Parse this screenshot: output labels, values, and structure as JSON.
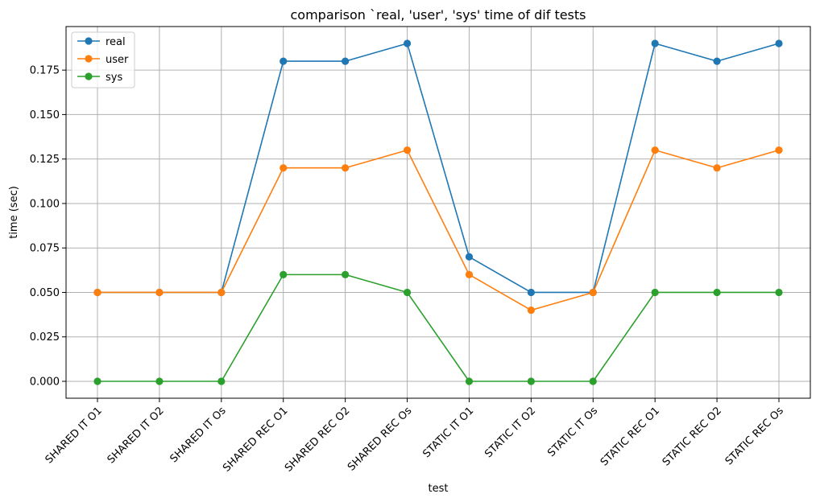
{
  "chart_data": {
    "type": "line",
    "title": "comparison `real, 'user', 'sys' time of dif tests",
    "xlabel": "test",
    "ylabel": "time (sec)",
    "categories": [
      "SHARED IT O1",
      "SHARED IT O2",
      "SHARED IT Os",
      "SHARED REC O1",
      "SHARED REC O2",
      "SHARED REC Os",
      "STATIC IT O1",
      "STATIC IT O2",
      "STATIC IT Os",
      "STATIC REC O1",
      "STATIC REC O2",
      "STATIC REC Os"
    ],
    "series": [
      {
        "name": "real",
        "color": "#1f77b4",
        "values": [
          0.05,
          0.05,
          0.05,
          0.18,
          0.18,
          0.19,
          0.07,
          0.05,
          0.05,
          0.19,
          0.18,
          0.19
        ]
      },
      {
        "name": "user",
        "color": "#ff7f0e",
        "values": [
          0.05,
          0.05,
          0.05,
          0.12,
          0.12,
          0.13,
          0.06,
          0.04,
          0.05,
          0.13,
          0.12,
          0.13
        ]
      },
      {
        "name": "sys",
        "color": "#2ca02c",
        "values": [
          0.0,
          0.0,
          0.0,
          0.06,
          0.06,
          0.05,
          0.0,
          0.0,
          0.0,
          0.05,
          0.05,
          0.05
        ]
      }
    ],
    "ylim": [
      -0.0095,
      0.1995
    ],
    "yticks": [
      0.0,
      0.025,
      0.05,
      0.075,
      0.1,
      0.125,
      0.15,
      0.175
    ],
    "ytick_labels": [
      "0.000",
      "0.025",
      "0.050",
      "0.075",
      "0.100",
      "0.125",
      "0.150",
      "0.175"
    ],
    "grid": true,
    "legend_position": "top-left",
    "marker": "circle"
  }
}
